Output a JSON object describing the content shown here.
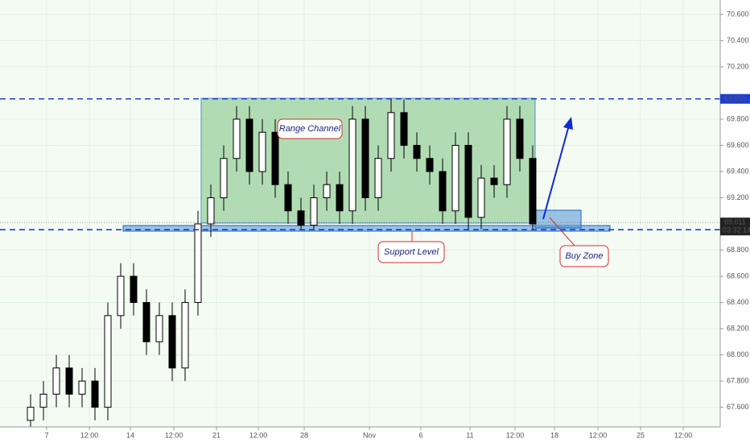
{
  "chart_data": {
    "type": "candlestick",
    "x": [
      7.6,
      10.8,
      14,
      17.2,
      20.4,
      23.6,
      26.8,
      30,
      33.2,
      36.4,
      39.6,
      42.8,
      46,
      49.2,
      52.4,
      55.6,
      58.8,
      62,
      65.2,
      68.4,
      71.6,
      74.8,
      78,
      81.2,
      84.4,
      87.6,
      90.8,
      94,
      97.2,
      100.4,
      103.6,
      106.8,
      110,
      113.2,
      116.4,
      119.6,
      122.8,
      126,
      129.2,
      132.4
    ],
    "open": [
      67.5,
      67.6,
      67.7,
      67.9,
      67.7,
      67.8,
      67.6,
      68.3,
      68.6,
      68.4,
      68.1,
      68.3,
      67.9,
      68.4,
      69.0,
      69.2,
      69.5,
      69.8,
      69.4,
      69.7,
      69.3,
      69.1,
      68.99,
      69.2,
      69.3,
      69.1,
      69.8,
      69.2,
      69.5,
      69.85,
      69.6,
      69.5,
      69.4,
      69.1,
      69.6,
      69.05,
      69.35,
      69.3,
      69.8,
      69.5
    ],
    "high": [
      67.7,
      67.8,
      68.0,
      68.0,
      67.9,
      67.9,
      68.4,
      68.7,
      68.7,
      68.5,
      68.4,
      68.4,
      68.5,
      69.1,
      69.3,
      69.6,
      69.9,
      69.9,
      69.8,
      69.8,
      69.4,
      69.2,
      69.3,
      69.4,
      69.4,
      69.9,
      69.9,
      69.6,
      69.95,
      69.95,
      69.7,
      69.6,
      69.5,
      69.7,
      69.7,
      69.45,
      69.45,
      69.9,
      69.9,
      69.6
    ],
    "low": [
      67.4,
      67.5,
      67.6,
      67.6,
      67.6,
      67.5,
      67.5,
      68.2,
      68.3,
      68.0,
      68.0,
      67.8,
      67.8,
      68.3,
      68.9,
      69.1,
      69.4,
      69.3,
      69.3,
      69.2,
      69.0,
      68.96,
      68.96,
      69.1,
      69.0,
      69.0,
      69.1,
      69.1,
      69.4,
      69.5,
      69.4,
      69.3,
      69.0,
      69.0,
      68.95,
      68.96,
      69.2,
      69.2,
      69.4,
      68.96
    ],
    "close": [
      67.6,
      67.7,
      67.9,
      67.7,
      67.8,
      67.6,
      68.3,
      68.6,
      68.4,
      68.1,
      68.3,
      67.9,
      68.4,
      69.0,
      69.2,
      69.5,
      69.8,
      69.4,
      69.7,
      69.3,
      69.1,
      68.99,
      69.2,
      69.3,
      69.1,
      69.8,
      69.2,
      69.5,
      69.85,
      69.6,
      69.5,
      69.4,
      69.1,
      69.6,
      69.05,
      69.35,
      69.3,
      69.8,
      69.5,
      69.0
    ],
    "xlim": [
      0,
      179
    ],
    "ylim": [
      67.45,
      70.71
    ],
    "xticks": [
      {
        "value": 11.6,
        "label": "7"
      },
      {
        "value": 22.2,
        "label": "12:00"
      },
      {
        "value": 32.4,
        "label": "14"
      },
      {
        "value": 43.2,
        "label": "12:00"
      },
      {
        "value": 53.8,
        "label": "21"
      },
      {
        "value": 64.2,
        "label": "12:00"
      },
      {
        "value": 75.6,
        "label": "28"
      },
      {
        "value": 91.8,
        "label": "Nov"
      },
      {
        "value": 104.6,
        "label": "6"
      },
      {
        "value": 116.8,
        "label": "11"
      },
      {
        "value": 128,
        "label": "12:00"
      },
      {
        "value": 137.8,
        "label": "18"
      },
      {
        "value": 148.6,
        "label": "12:00"
      },
      {
        "value": 159.2,
        "label": "25"
      },
      {
        "value": 169.8,
        "label": "12:00"
      }
    ],
    "yticks": [
      {
        "value": 67.6,
        "label": "67.600"
      },
      {
        "value": 67.8,
        "label": "67.800"
      },
      {
        "value": 68.0,
        "label": "68.000"
      },
      {
        "value": 68.2,
        "label": "68.200"
      },
      {
        "value": 68.4,
        "label": "68.400"
      },
      {
        "value": 68.6,
        "label": "68.600"
      },
      {
        "value": 68.8,
        "label": "68.800"
      },
      {
        "value": 69.2,
        "label": "69.200"
      },
      {
        "value": 69.4,
        "label": "69.400"
      },
      {
        "value": 69.6,
        "label": "69.600"
      },
      {
        "value": 69.8,
        "label": "69.800"
      },
      {
        "value": 70.2,
        "label": "70.200"
      },
      {
        "value": 70.4,
        "label": "70.400"
      },
      {
        "value": 70.6,
        "label": "70.600"
      }
    ],
    "grid": true,
    "resistance": 69.955,
    "support": 68.956,
    "last_price": 69.011,
    "countdown": "03:32:14",
    "annotations": [
      "Range Channel",
      "Support Level",
      "Buy Zone"
    ]
  }
}
